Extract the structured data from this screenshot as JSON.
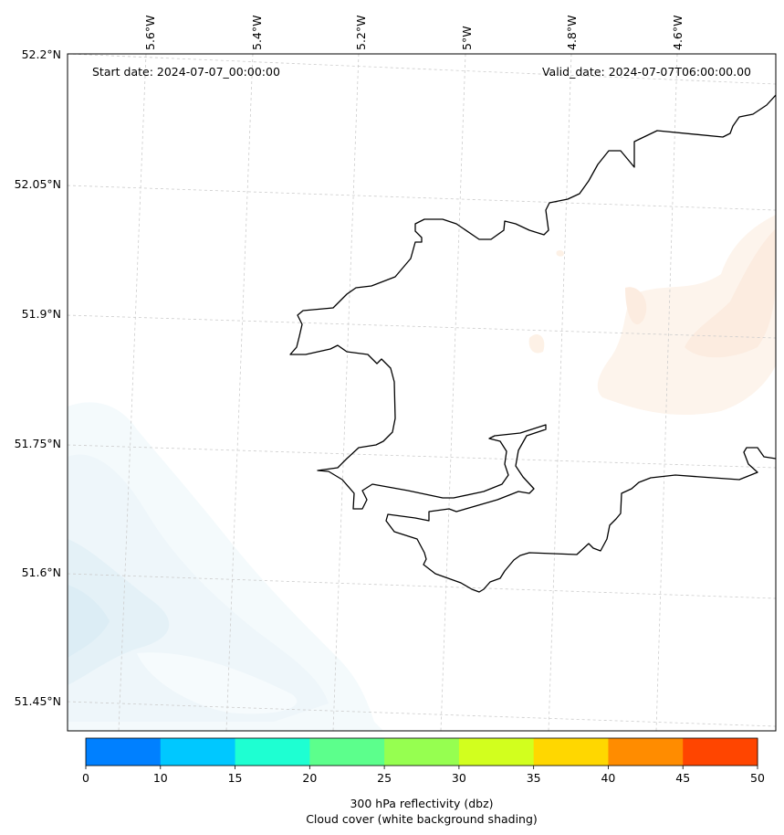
{
  "header": {
    "start_date": "Start date: 2024-07-07_00:00:00",
    "valid_date": "Valid_date: 2024-07-07T06:00:00.00"
  },
  "axes": {
    "lon_labels": [
      "5.6°W",
      "5.4°W",
      "5.2°W",
      "5°W",
      "4.8°W",
      "4.6°W"
    ],
    "lat_labels": [
      "52.2°N",
      "52.05°N",
      "51.9°N",
      "51.75°N",
      "51.6°N",
      "51.45°N"
    ],
    "grid": true
  },
  "colorbar": {
    "ticks": [
      "0",
      "10",
      "15",
      "20",
      "25",
      "30",
      "35",
      "40",
      "45",
      "50"
    ],
    "colors": [
      "#0080ff",
      "#00c8ff",
      "#1effd2",
      "#5cff8c",
      "#96ff50",
      "#d2ff1e",
      "#ffd700",
      "#ff8c00",
      "#ff4500"
    ],
    "label_line1": "300 hPa reflectivity (dbz)",
    "label_line2": "Cloud cover (white background shading)"
  },
  "colors": {
    "coastline": "#000000",
    "cloud_shading": "#e6f3f8",
    "reflectivity_shading": "#fdeee0",
    "gridline": "#cccccc"
  }
}
